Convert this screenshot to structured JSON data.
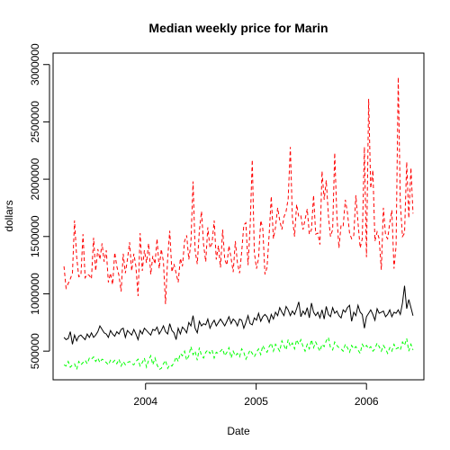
{
  "chart_data": {
    "type": "line",
    "title": "Median weekly price for Marin",
    "xlabel": "Date",
    "ylabel": "dollars",
    "x_range": [
      "2003-04-06",
      "2006-06-04"
    ],
    "xlim": [
      "2003-03-01",
      "2006-07-10"
    ],
    "ylim": [
      250000,
      3100000
    ],
    "x_ticks": [
      {
        "date": "2004-01-01",
        "label": "2004"
      },
      {
        "date": "2005-01-01",
        "label": "2005"
      },
      {
        "date": "2006-01-01",
        "label": "2006"
      }
    ],
    "y_ticks": [
      {
        "value": 500000,
        "label": "500000"
      },
      {
        "value": 1000000,
        "label": "1000000"
      },
      {
        "value": 1500000,
        "label": "1500000"
      },
      {
        "value": 2000000,
        "label": "2000000"
      },
      {
        "value": 2500000,
        "label": "2500000"
      },
      {
        "value": 3000000,
        "label": "3000000"
      }
    ],
    "legend": "none",
    "grid": false,
    "series": [
      {
        "color": "#ff0000",
        "line_style": "dashed",
        "values": [
          1240000,
          1050000,
          1090000,
          1130000,
          1180000,
          1640000,
          1320000,
          1150000,
          1160000,
          1520000,
          1140000,
          1170000,
          1160000,
          1130000,
          1490000,
          1200000,
          1390000,
          1300000,
          1440000,
          1280000,
          1380000,
          1100000,
          1180000,
          1080000,
          1360000,
          1240000,
          1160000,
          1020000,
          1350000,
          1180000,
          1300000,
          1450000,
          1200000,
          1350000,
          1240000,
          980000,
          1530000,
          1200000,
          1380000,
          1270000,
          1440000,
          1170000,
          1330000,
          1260000,
          1480000,
          1220000,
          1390000,
          1280000,
          910000,
          1310000,
          1550000,
          1190000,
          1260000,
          1180000,
          1100000,
          1310000,
          1240000,
          1460000,
          1510000,
          1300000,
          1440000,
          1980000,
          1380000,
          1260000,
          1550000,
          1720000,
          1430000,
          1280000,
          1580000,
          1400000,
          1440000,
          1640000,
          1300000,
          1420000,
          1230000,
          1560000,
          1300000,
          1250000,
          1420000,
          1310000,
          1190000,
          1460000,
          1270000,
          1180000,
          1360000,
          1600000,
          1620000,
          1250000,
          1580000,
          2170000,
          1360000,
          1220000,
          1310000,
          1640000,
          1570000,
          1170000,
          1230000,
          1520000,
          1850000,
          1480000,
          1580000,
          1750000,
          1640000,
          1560000,
          1670000,
          1720000,
          1830000,
          2280000,
          1660000,
          1500000,
          1780000,
          1670000,
          1680000,
          1560000,
          1650000,
          1740000,
          1520000,
          1560000,
          1860000,
          1520000,
          1530000,
          1430000,
          2070000,
          1820000,
          1990000,
          1680000,
          1500000,
          1560000,
          2230000,
          1680000,
          1400000,
          1600000,
          1590000,
          1820000,
          1710000,
          1530000,
          1480000,
          1510000,
          1860000,
          1620000,
          1400000,
          1480000,
          2280000,
          1320000,
          2700000,
          1920000,
          2080000,
          1460000,
          1540000,
          1480000,
          1210000,
          1750000,
          1510000,
          1480000,
          1620000,
          1730000,
          1220000,
          1420000,
          2890000,
          1790000,
          1500000,
          1530000,
          2150000,
          1660000,
          2100000,
          1700000
        ]
      },
      {
        "color": "#000000",
        "line_style": "solid",
        "values": [
          620000,
          600000,
          610000,
          670000,
          560000,
          640000,
          590000,
          630000,
          640000,
          620000,
          600000,
          650000,
          620000,
          660000,
          620000,
          640000,
          670000,
          720000,
          690000,
          660000,
          650000,
          620000,
          680000,
          650000,
          630000,
          670000,
          650000,
          690000,
          700000,
          620000,
          680000,
          660000,
          640000,
          690000,
          650000,
          600000,
          680000,
          650000,
          700000,
          680000,
          660000,
          640000,
          690000,
          680000,
          710000,
          650000,
          680000,
          720000,
          670000,
          650000,
          740000,
          680000,
          660000,
          600000,
          700000,
          650000,
          710000,
          690000,
          660000,
          750000,
          720000,
          810000,
          700000,
          660000,
          760000,
          720000,
          740000,
          730000,
          780000,
          700000,
          740000,
          770000,
          720000,
          750000,
          780000,
          750000,
          720000,
          760000,
          800000,
          740000,
          780000,
          760000,
          720000,
          780000,
          770000,
          700000,
          750000,
          810000,
          740000,
          730000,
          790000,
          770000,
          830000,
          760000,
          800000,
          820000,
          800000,
          750000,
          820000,
          780000,
          840000,
          810000,
          880000,
          840000,
          810000,
          890000,
          860000,
          810000,
          850000,
          820000,
          870000,
          930000,
          800000,
          850000,
          820000,
          880000,
          790000,
          920000,
          840000,
          810000,
          840000,
          790000,
          860000,
          780000,
          890000,
          820000,
          800000,
          880000,
          830000,
          850000,
          810000,
          790000,
          860000,
          840000,
          880000,
          900000,
          760000,
          840000,
          810000,
          900000,
          840000,
          820000,
          700000,
          800000,
          830000,
          860000,
          820000,
          770000,
          870000,
          830000,
          840000,
          850000,
          800000,
          820000,
          860000,
          800000,
          840000,
          830000,
          860000,
          820000,
          920000,
          1070000,
          870000,
          950000,
          880000,
          810000
        ]
      },
      {
        "color": "#00ff00",
        "line_style": "dashed",
        "values": [
          380000,
          370000,
          410000,
          360000,
          380000,
          390000,
          340000,
          410000,
          380000,
          400000,
          420000,
          390000,
          440000,
          430000,
          450000,
          410000,
          440000,
          400000,
          430000,
          420000,
          400000,
          380000,
          420000,
          400000,
          420000,
          390000,
          430000,
          370000,
          410000,
          380000,
          400000,
          410000,
          390000,
          380000,
          410000,
          430000,
          370000,
          400000,
          440000,
          360000,
          420000,
          460000,
          380000,
          440000,
          380000,
          340000,
          350000,
          390000,
          420000,
          350000,
          380000,
          370000,
          400000,
          450000,
          410000,
          480000,
          460000,
          500000,
          420000,
          460000,
          540000,
          470000,
          500000,
          420000,
          530000,
          460000,
          440000,
          490000,
          510000,
          480000,
          510000,
          440000,
          490000,
          480000,
          500000,
          520000,
          460000,
          490000,
          530000,
          440000,
          500000,
          460000,
          480000,
          450000,
          520000,
          490000,
          430000,
          470000,
          510000,
          480000,
          450000,
          490000,
          520000,
          470000,
          550000,
          510000,
          490000,
          540000,
          570000,
          500000,
          560000,
          530000,
          500000,
          590000,
          550000,
          510000,
          600000,
          540000,
          570000,
          520000,
          600000,
          560000,
          600000,
          540000,
          500000,
          560000,
          520000,
          600000,
          530000,
          580000,
          540000,
          500000,
          560000,
          540000,
          590000,
          620000,
          530000,
          510000,
          580000,
          550000,
          530000,
          520000,
          500000,
          560000,
          530000,
          490000,
          550000,
          520000,
          540000,
          510000,
          480000,
          560000,
          530000,
          550000,
          520000,
          540000,
          500000,
          520000,
          570000,
          540000,
          500000,
          550000,
          520000,
          480000,
          530000,
          500000,
          560000,
          520000,
          530000,
          510000,
          580000,
          550000,
          610000,
          500000,
          560000,
          510000
        ]
      }
    ]
  }
}
